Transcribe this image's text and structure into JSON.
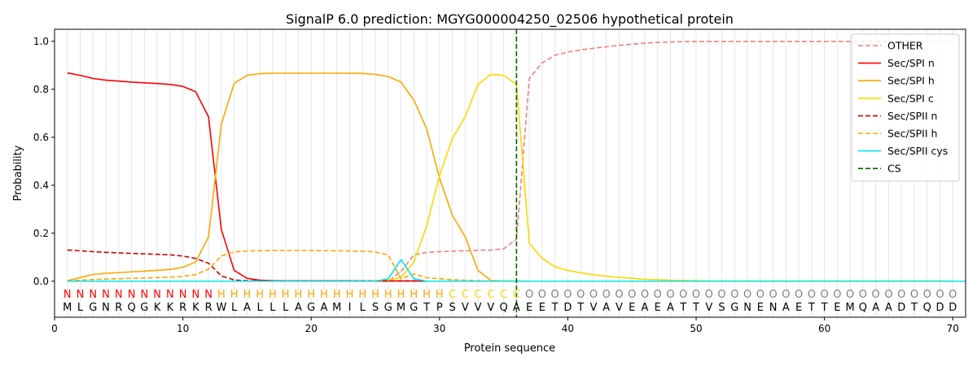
{
  "chart_data": {
    "type": "line",
    "title": "SignalP 6.0 prediction: MGYG000004250_02506 hypothetical protein",
    "xlabel": "Protein sequence",
    "ylabel": "Probability",
    "xlim": [
      0,
      71
    ],
    "ylim": [
      -0.15,
      1.05
    ],
    "xticks": [
      0,
      10,
      20,
      30,
      40,
      50,
      60,
      70
    ],
    "yticks": [
      0.0,
      0.2,
      0.4,
      0.6,
      0.8,
      1.0
    ],
    "ytick_labels": [
      "0.0",
      "0.2",
      "0.4",
      "0.6",
      "0.8",
      "1.0"
    ],
    "legend_position": "top-right",
    "cleavage_site": 36,
    "sequence": "MLGNRQGKKRKRWLALLLAGAMILSGMGTPSVVVQAEETDTVAVEAEATTVSGNENAETTEMQAADTQDD",
    "labels": "NNNNNNNNNNNNHHHHHHHHHHHHHHHHHHCCCCCCOOOOOOOOOOOOOOOOOOOOOOOOOOOOOOOOOO",
    "label_colors": {
      "N": "#ff0000",
      "H": "#ffa500",
      "C": "#ffd700",
      "O": "#808080"
    },
    "series": [
      {
        "name": "OTHER",
        "color": "#f08080",
        "dash": "dashed",
        "values": [
          0,
          0,
          0,
          0,
          0,
          0,
          0,
          0,
          0,
          0,
          0,
          0,
          0,
          0,
          0,
          0,
          0,
          0,
          0,
          0,
          0,
          0,
          0,
          0,
          0,
          0,
          0.04,
          0.11,
          0.12,
          0.123,
          0.125,
          0.127,
          0.129,
          0.13,
          0.135,
          0.175,
          0.845,
          0.91,
          0.942,
          0.955,
          0.964,
          0.971,
          0.977,
          0.983,
          0.988,
          0.992,
          0.995,
          0.997,
          0.998,
          0.999,
          0.999,
          0.999,
          0.999,
          0.999,
          0.999,
          0.999,
          0.999,
          0.999,
          0.999,
          0.999,
          0.999,
          0.999,
          0.999,
          0.999,
          0.999,
          0.999,
          0.999,
          0.999,
          0.999,
          0.999
        ]
      },
      {
        "name": "Sec/SPI n",
        "color": "#ff0000",
        "dash": "solid",
        "values": [
          0.868,
          0.858,
          0.845,
          0.838,
          0.834,
          0.83,
          0.827,
          0.824,
          0.82,
          0.812,
          0.79,
          0.685,
          0.215,
          0.045,
          0.012,
          0.004,
          0.002,
          0.001,
          0.001,
          0.001,
          0.001,
          0.001,
          0.001,
          0.001,
          0.001,
          0.001,
          0.001,
          0.001,
          0,
          0,
          0,
          0,
          0,
          0,
          0,
          0,
          0,
          0,
          0,
          0,
          0,
          0,
          0,
          0,
          0,
          0,
          0,
          0,
          0,
          0,
          0,
          0,
          0,
          0,
          0,
          0,
          0,
          0,
          0,
          0,
          0,
          0,
          0,
          0,
          0,
          0,
          0,
          0,
          0,
          0
        ]
      },
      {
        "name": "Sec/SPI h",
        "color": "#ffa500",
        "dash": "solid",
        "values": [
          0.002,
          0.015,
          0.028,
          0.033,
          0.036,
          0.039,
          0.042,
          0.045,
          0.049,
          0.058,
          0.08,
          0.185,
          0.655,
          0.825,
          0.858,
          0.865,
          0.867,
          0.867,
          0.867,
          0.867,
          0.867,
          0.867,
          0.867,
          0.866,
          0.862,
          0.853,
          0.83,
          0.755,
          0.635,
          0.43,
          0.275,
          0.185,
          0.045,
          0.003,
          0.001,
          0.001,
          0,
          0,
          0,
          0,
          0,
          0,
          0,
          0,
          0,
          0,
          0,
          0,
          0,
          0,
          0,
          0,
          0,
          0,
          0,
          0,
          0,
          0,
          0,
          0,
          0,
          0,
          0,
          0,
          0,
          0,
          0,
          0,
          0,
          0
        ]
      },
      {
        "name": "Sec/SPI c",
        "color": "#ffd700",
        "dash": "solid",
        "values": [
          0,
          0,
          0,
          0,
          0,
          0,
          0,
          0,
          0,
          0,
          0,
          0,
          0,
          0,
          0,
          0,
          0,
          0,
          0,
          0,
          0,
          0,
          0,
          0.001,
          0.002,
          0.005,
          0.015,
          0.08,
          0.23,
          0.44,
          0.595,
          0.685,
          0.82,
          0.862,
          0.858,
          0.82,
          0.158,
          0.095,
          0.06,
          0.045,
          0.035,
          0.027,
          0.021,
          0.016,
          0.012,
          0.008,
          0.006,
          0.004,
          0.003,
          0.002,
          0.001,
          0.001,
          0.001,
          0.001,
          0.001,
          0.001,
          0.001,
          0.001,
          0.001,
          0.001,
          0.001,
          0.001,
          0.001,
          0.001,
          0.001,
          0.001,
          0.001,
          0.001,
          0.001,
          0.001
        ]
      },
      {
        "name": "Sec/SPII n",
        "color": "#cc0000",
        "dash": "dashed",
        "values": [
          0.13,
          0.127,
          0.123,
          0.12,
          0.118,
          0.116,
          0.114,
          0.112,
          0.11,
          0.105,
          0.095,
          0.075,
          0.022,
          0.005,
          0.002,
          0.001,
          0.001,
          0.001,
          0.001,
          0.001,
          0.001,
          0.001,
          0.001,
          0.001,
          0.001,
          0.001,
          0.001,
          0.001,
          0,
          0,
          0,
          0,
          0,
          0,
          0,
          0,
          0,
          0,
          0,
          0,
          0,
          0,
          0,
          0,
          0,
          0,
          0,
          0,
          0,
          0,
          0,
          0,
          0,
          0,
          0,
          0,
          0,
          0,
          0,
          0,
          0,
          0,
          0,
          0,
          0,
          0,
          0,
          0,
          0,
          0
        ]
      },
      {
        "name": "Sec/SPII h",
        "color": "#ffa500",
        "dash": "dashed",
        "values": [
          0.001,
          0.004,
          0.007,
          0.009,
          0.01,
          0.012,
          0.013,
          0.015,
          0.017,
          0.02,
          0.028,
          0.05,
          0.105,
          0.122,
          0.126,
          0.127,
          0.128,
          0.128,
          0.128,
          0.128,
          0.127,
          0.127,
          0.126,
          0.125,
          0.122,
          0.11,
          0.01,
          0.03,
          0.015,
          0.01,
          0.006,
          0.004,
          0.002,
          0.001,
          0,
          0,
          0,
          0,
          0,
          0,
          0,
          0,
          0,
          0,
          0,
          0,
          0,
          0,
          0,
          0,
          0,
          0,
          0,
          0,
          0,
          0,
          0,
          0,
          0,
          0,
          0,
          0,
          0,
          0,
          0,
          0,
          0,
          0,
          0,
          0
        ]
      },
      {
        "name": "Sec/SPII cys",
        "color": "#00e5ee",
        "dash": "solid",
        "values": [
          0,
          0,
          0,
          0,
          0,
          0,
          0,
          0,
          0,
          0,
          0,
          0,
          0,
          0,
          0,
          0,
          0,
          0,
          0,
          0,
          0,
          0,
          0,
          0,
          0,
          0.01,
          0.09,
          0.01,
          0,
          0,
          0,
          0,
          0,
          0,
          0,
          0,
          0,
          0,
          0,
          0,
          0,
          0,
          0,
          0,
          0,
          0,
          0,
          0,
          0,
          0,
          0,
          0,
          0,
          0,
          0,
          0,
          0,
          0,
          0,
          0,
          0,
          0,
          0,
          0,
          0,
          0,
          0,
          0,
          0,
          0,
          0
        ]
      },
      {
        "name": "CS",
        "color": "#006400",
        "dash": "dashed",
        "values": []
      }
    ]
  }
}
